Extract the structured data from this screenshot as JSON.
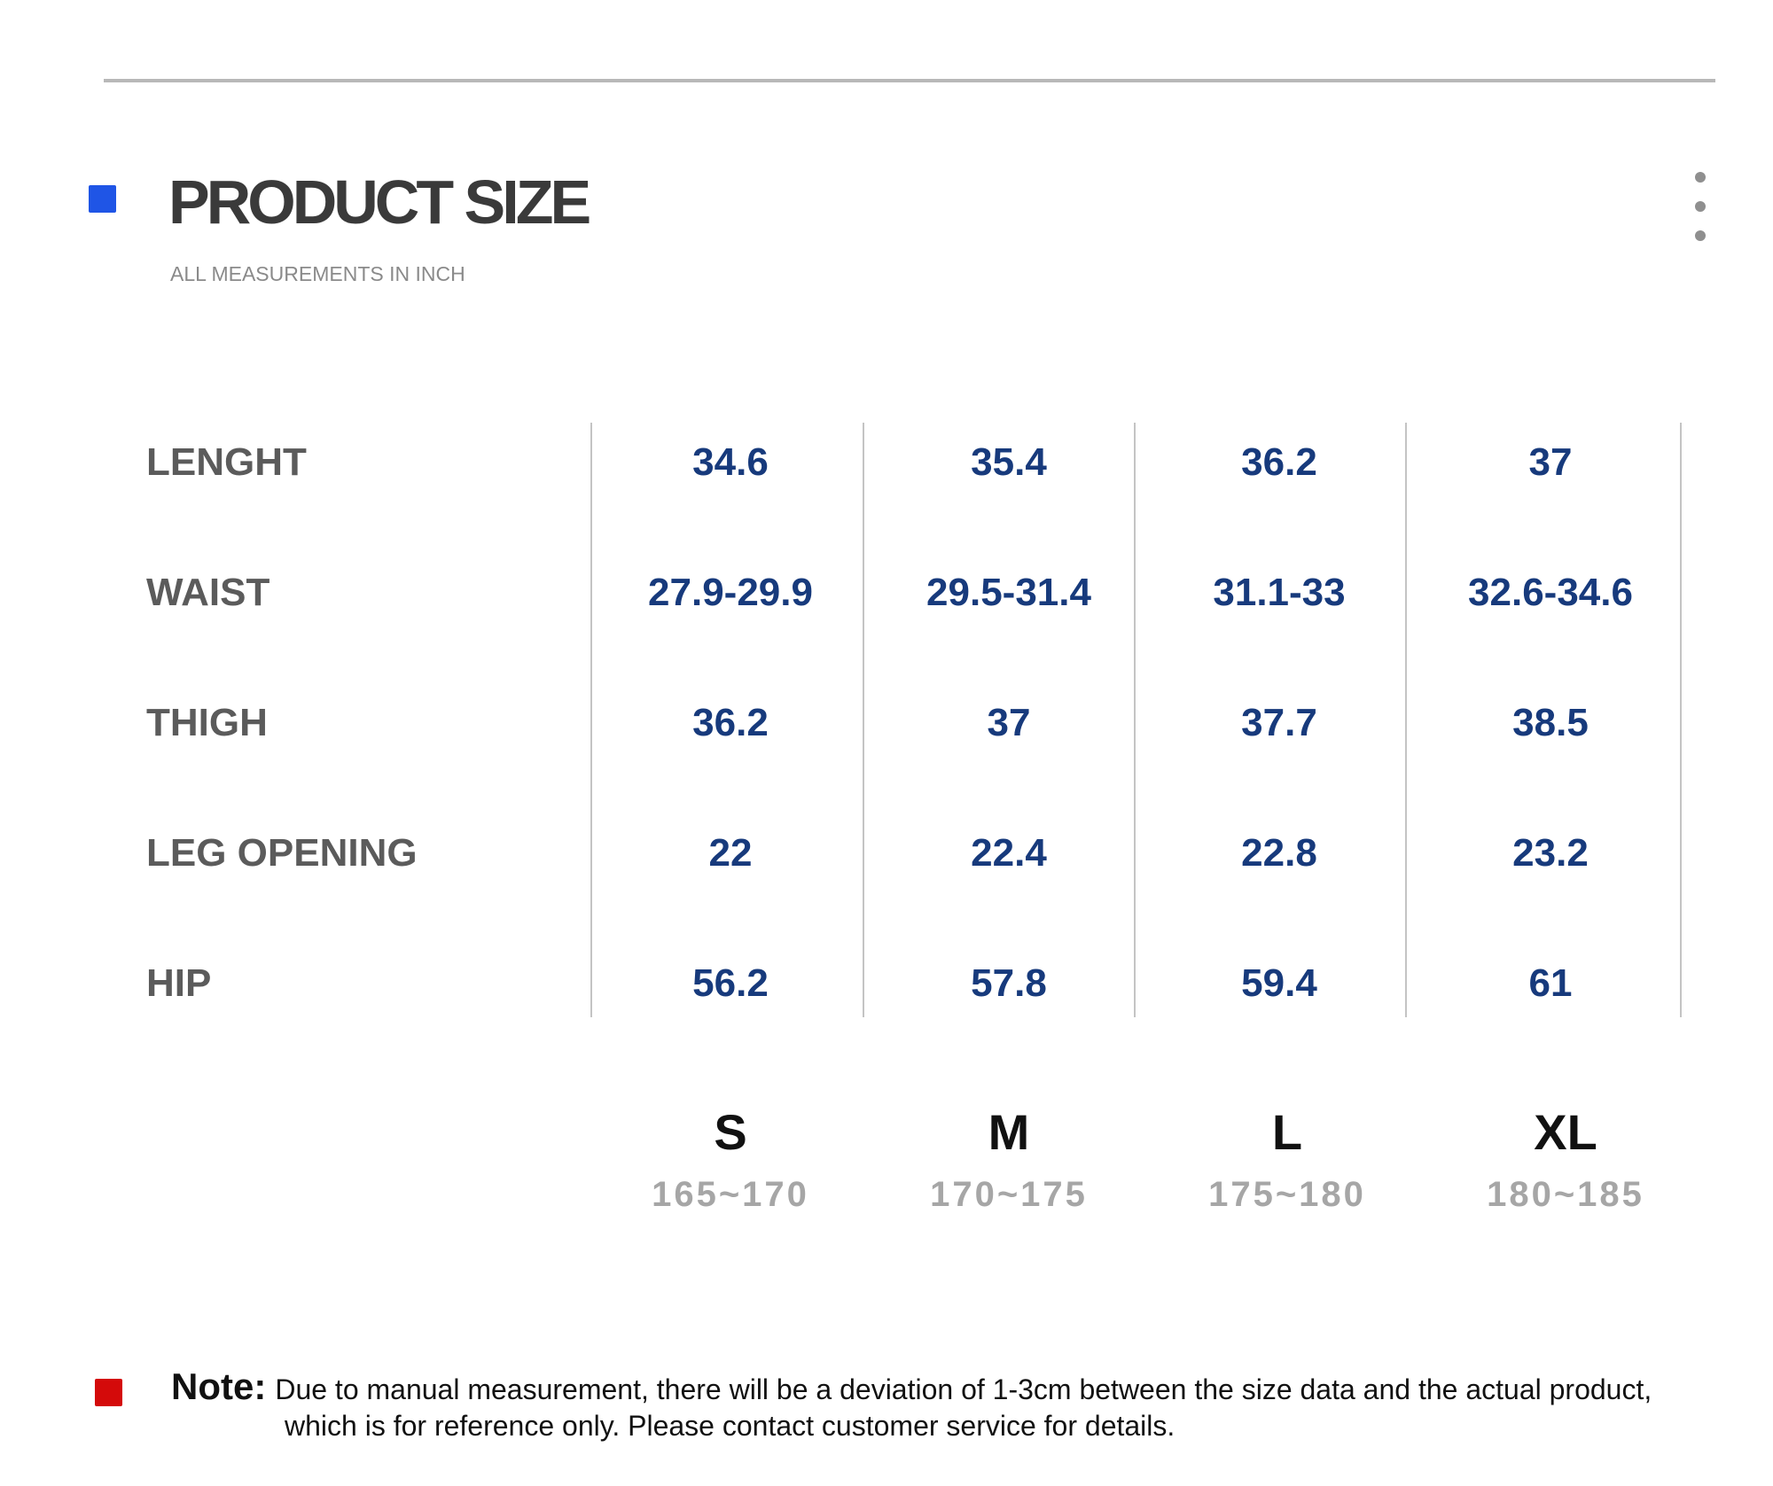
{
  "header": {
    "title": "PRODUCT SIZE",
    "subtitle": "ALL MEASUREMENTS IN INCH",
    "accent_color": "#1f55e6",
    "more_icon": "more-vertical-icon"
  },
  "size_table": {
    "sizes": [
      {
        "label": "S",
        "height_range": "165~170"
      },
      {
        "label": "M",
        "height_range": "170~175"
      },
      {
        "label": "L",
        "height_range": "175~180"
      },
      {
        "label": "XL",
        "height_range": "180~185"
      }
    ],
    "rows": [
      {
        "label": "LENGHT",
        "values": [
          "34.6",
          "35.4",
          "36.2",
          "37"
        ]
      },
      {
        "label": "WAIST",
        "values": [
          "27.9-29.9",
          "29.5-31.4",
          "31.1-33",
          "32.6-34.6"
        ]
      },
      {
        "label": "THIGH",
        "values": [
          "36.2",
          "37",
          "37.7",
          "38.5"
        ]
      },
      {
        "label": "LEG OPENING",
        "values": [
          "22",
          "22.4",
          "22.8",
          "23.2"
        ]
      },
      {
        "label": "HIP",
        "values": [
          "56.2",
          "57.8",
          "59.4",
          "61"
        ]
      }
    ],
    "value_color": "#173a7c",
    "label_color": "#5b5b5b"
  },
  "note": {
    "heading": "Note:",
    "line1": "Due to manual measurement, there will be a deviation of 1-3cm between the size data and the actual product,",
    "line2": "which is for reference only. Please contact customer service for details.",
    "marker_color": "#d40a0a"
  }
}
